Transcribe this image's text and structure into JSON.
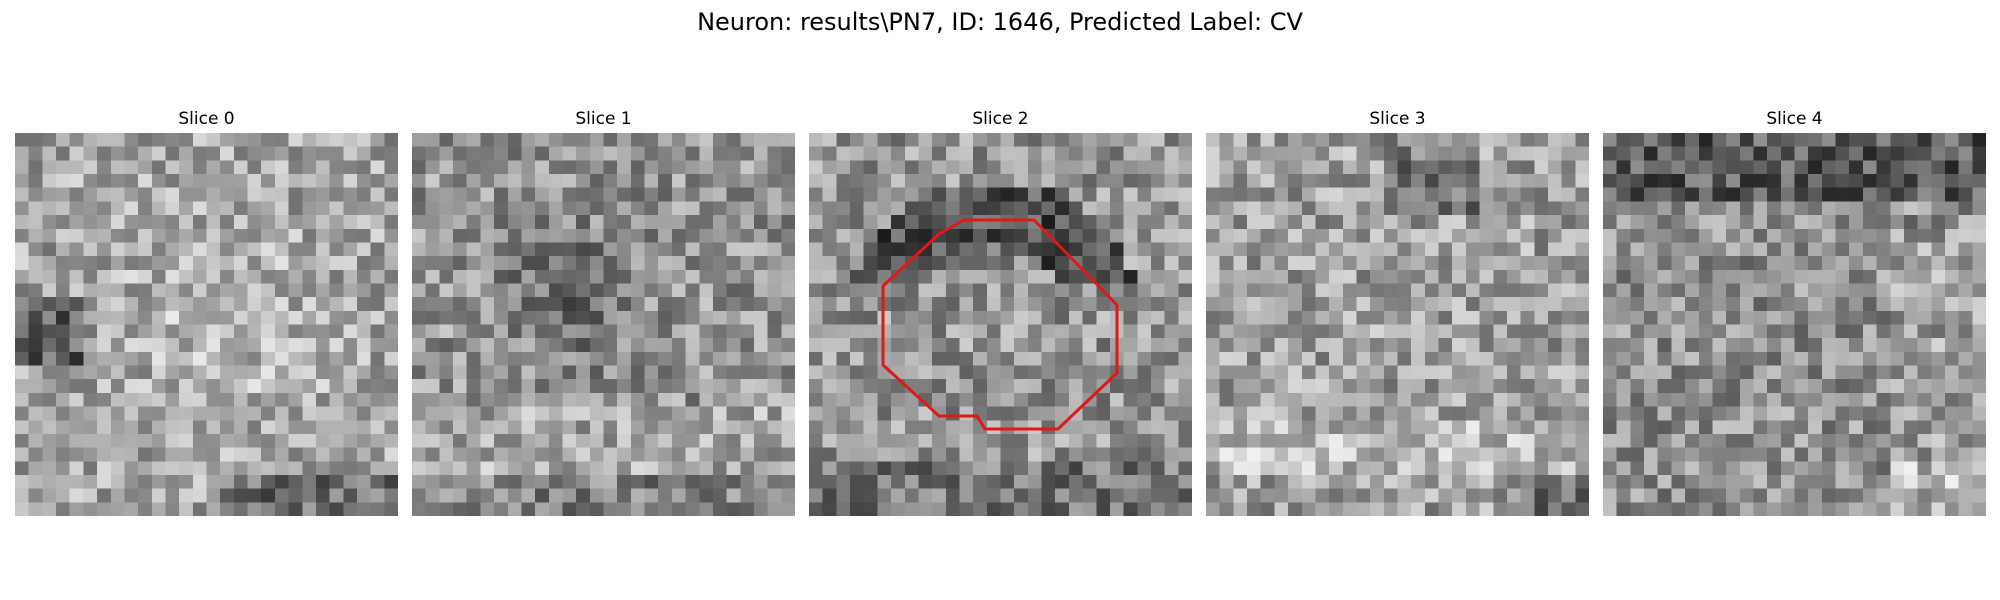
{
  "figure": {
    "title": "Neuron: results\\PN7, ID: 1646, Predicted Label: CV"
  },
  "colors": {
    "background": "#ffffff",
    "contour": "#e01818",
    "text": "#000000"
  },
  "panels": [
    {
      "title": "Slice 0"
    },
    {
      "title": "Slice 1"
    },
    {
      "title": "Slice 2"
    },
    {
      "title": "Slice 3"
    },
    {
      "title": "Slice 4"
    }
  ],
  "image": {
    "colormap": "gray",
    "grid_size": 28
  }
}
